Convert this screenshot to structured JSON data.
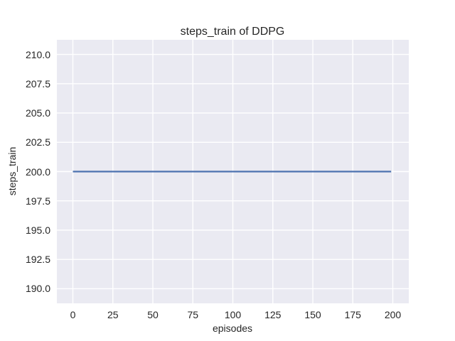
{
  "chart_data": {
    "type": "line",
    "title": "steps_train of DDPG",
    "xlabel": "episodes",
    "ylabel": "steps_train",
    "xlim": [
      -10,
      210
    ],
    "ylim": [
      188.75,
      211.25
    ],
    "grid": true,
    "legend": false,
    "xticks": {
      "values": [
        0,
        25,
        50,
        75,
        100,
        125,
        150,
        175,
        200
      ],
      "labels": [
        "0",
        "25",
        "50",
        "75",
        "100",
        "125",
        "150",
        "175",
        "200"
      ]
    },
    "yticks": {
      "values": [
        190.0,
        192.5,
        195.0,
        197.5,
        200.0,
        202.5,
        205.0,
        207.5,
        210.0
      ],
      "labels": [
        "190.0",
        "192.5",
        "195.0",
        "197.5",
        "200.0",
        "202.5",
        "205.0",
        "207.5",
        "210.0"
      ]
    },
    "series": [
      {
        "name": "steps_train",
        "x": [
          0,
          199
        ],
        "y": [
          200,
          200
        ]
      }
    ],
    "colors": {
      "figure_background": "#ffffff",
      "axes_background": "#eaeaf2",
      "grid": "#ffffff",
      "line": "#4c72b0",
      "text": "#262626"
    }
  }
}
